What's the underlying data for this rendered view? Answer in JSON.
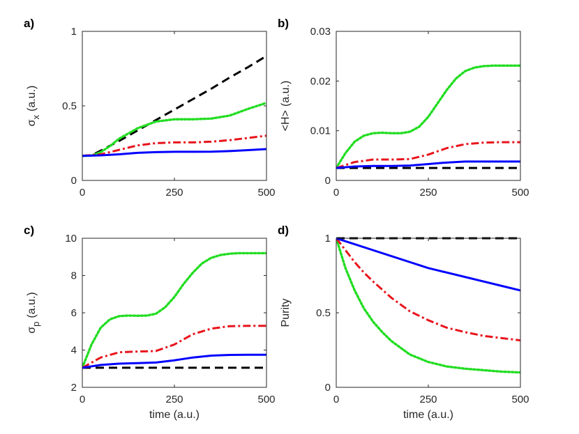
{
  "chart_data": [
    {
      "type": "line",
      "panel_label": "a)",
      "xlabel": "",
      "ylabel": "σ",
      "ylabel_sub": "x",
      "ylabel_unit": "(a.u.)",
      "xlim": [
        0,
        500
      ],
      "ylim": [
        0,
        1
      ],
      "xticks": [
        0,
        250,
        500
      ],
      "yticks": [
        0,
        0.5,
        1
      ],
      "series": [
        {
          "name": "dashed",
          "color": "#000000",
          "style": "dashed",
          "x": [
            0,
            25,
            50,
            100,
            150,
            200,
            250,
            300,
            350,
            400,
            450,
            500
          ],
          "y": [
            0.165,
            0.168,
            0.2,
            0.265,
            0.335,
            0.405,
            0.475,
            0.545,
            0.615,
            0.69,
            0.76,
            0.835
          ]
        },
        {
          "name": "dotted",
          "color": "#22dd22",
          "style": "dotted",
          "x": [
            0,
            25,
            50,
            75,
            100,
            150,
            200,
            250,
            300,
            350,
            400,
            450,
            500
          ],
          "y": [
            0.165,
            0.167,
            0.19,
            0.23,
            0.28,
            0.35,
            0.395,
            0.41,
            0.41,
            0.415,
            0.435,
            0.48,
            0.52
          ]
        },
        {
          "name": "dash-dot",
          "color": "#e8141c",
          "style": "dashdot",
          "x": [
            0,
            50,
            100,
            150,
            200,
            250,
            300,
            350,
            400,
            450,
            500
          ],
          "y": [
            0.165,
            0.175,
            0.205,
            0.235,
            0.25,
            0.255,
            0.255,
            0.26,
            0.27,
            0.285,
            0.3
          ]
        },
        {
          "name": "solid",
          "color": "#0000ff",
          "style": "solid",
          "x": [
            0,
            50,
            100,
            150,
            200,
            250,
            300,
            350,
            400,
            450,
            500
          ],
          "y": [
            0.165,
            0.168,
            0.175,
            0.185,
            0.19,
            0.192,
            0.192,
            0.193,
            0.197,
            0.203,
            0.21
          ]
        }
      ]
    },
    {
      "type": "line",
      "panel_label": "b)",
      "xlabel": "",
      "ylabel": "<H>",
      "ylabel_sub": "",
      "ylabel_unit": "(a.u.)",
      "xlim": [
        0,
        500
      ],
      "ylim": [
        0,
        0.03
      ],
      "xticks": [
        0,
        250,
        500
      ],
      "yticks": [
        0,
        0.01,
        0.02,
        0.03
      ],
      "series": [
        {
          "name": "dashed",
          "color": "#000000",
          "style": "dashed",
          "x": [
            0,
            500
          ],
          "y": [
            0.0025,
            0.0025
          ]
        },
        {
          "name": "dotted",
          "color": "#22dd22",
          "style": "dotted",
          "x": [
            0,
            25,
            50,
            75,
            100,
            125,
            150,
            175,
            200,
            225,
            250,
            275,
            300,
            325,
            350,
            375,
            400,
            425,
            450,
            475,
            500
          ],
          "y": [
            0.0025,
            0.0055,
            0.0078,
            0.009,
            0.0095,
            0.0096,
            0.0095,
            0.0095,
            0.0098,
            0.0108,
            0.0128,
            0.0155,
            0.0182,
            0.0205,
            0.022,
            0.0227,
            0.023,
            0.0231,
            0.0231,
            0.0231,
            0.0231
          ]
        },
        {
          "name": "dash-dot",
          "color": "#e8141c",
          "style": "dashdot",
          "x": [
            0,
            50,
            100,
            150,
            200,
            250,
            300,
            350,
            400,
            450,
            500
          ],
          "y": [
            0.0025,
            0.0037,
            0.0042,
            0.0042,
            0.0043,
            0.0052,
            0.0065,
            0.0073,
            0.0076,
            0.0077,
            0.0077
          ]
        },
        {
          "name": "solid",
          "color": "#0000ff",
          "style": "solid",
          "x": [
            0,
            50,
            100,
            150,
            200,
            250,
            300,
            350,
            400,
            450,
            500
          ],
          "y": [
            0.0025,
            0.0028,
            0.0029,
            0.0029,
            0.003,
            0.0033,
            0.0036,
            0.0038,
            0.0038,
            0.0038,
            0.0038
          ]
        }
      ]
    },
    {
      "type": "line",
      "panel_label": "c)",
      "xlabel": "time (a.u.)",
      "ylabel": "σ",
      "ylabel_sub": "p",
      "ylabel_unit": "(a.u.)",
      "xlim": [
        0,
        500
      ],
      "ylim": [
        2,
        10
      ],
      "xticks": [
        0,
        250,
        500
      ],
      "yticks": [
        2,
        4,
        6,
        8,
        10
      ],
      "series": [
        {
          "name": "dashed",
          "color": "#000000",
          "style": "dashed",
          "x": [
            0,
            500
          ],
          "y": [
            3.05,
            3.05
          ]
        },
        {
          "name": "dotted",
          "color": "#22dd22",
          "style": "dotted",
          "x": [
            0,
            25,
            50,
            75,
            100,
            125,
            150,
            175,
            200,
            225,
            250,
            275,
            300,
            325,
            350,
            375,
            400,
            425,
            450,
            475,
            500
          ],
          "y": [
            3.05,
            4.3,
            5.2,
            5.65,
            5.82,
            5.85,
            5.84,
            5.85,
            5.95,
            6.3,
            6.85,
            7.55,
            8.15,
            8.65,
            8.95,
            9.1,
            9.17,
            9.2,
            9.2,
            9.2,
            9.2
          ]
        },
        {
          "name": "dash-dot",
          "color": "#e8141c",
          "style": "dashdot",
          "x": [
            0,
            50,
            100,
            150,
            200,
            250,
            300,
            350,
            400,
            450,
            500
          ],
          "y": [
            3.05,
            3.6,
            3.88,
            3.92,
            3.95,
            4.3,
            4.85,
            5.15,
            5.28,
            5.3,
            5.3
          ]
        },
        {
          "name": "solid",
          "color": "#0000ff",
          "style": "solid",
          "x": [
            0,
            50,
            100,
            150,
            200,
            250,
            300,
            350,
            400,
            450,
            500
          ],
          "y": [
            3.05,
            3.2,
            3.27,
            3.3,
            3.33,
            3.45,
            3.6,
            3.7,
            3.74,
            3.75,
            3.75
          ]
        }
      ]
    },
    {
      "type": "line",
      "panel_label": "d)",
      "xlabel": "time (a.u.)",
      "ylabel": "Purity",
      "ylabel_sub": "",
      "ylabel_unit": "",
      "xlim": [
        0,
        500
      ],
      "ylim": [
        0,
        1
      ],
      "xticks": [
        0,
        250,
        500
      ],
      "yticks": [
        0,
        0.5,
        1
      ],
      "series": [
        {
          "name": "dashed",
          "color": "#000000",
          "style": "dashed",
          "x": [
            0,
            500
          ],
          "y": [
            1.0,
            1.0
          ]
        },
        {
          "name": "dotted",
          "color": "#22dd22",
          "style": "dotted",
          "x": [
            0,
            25,
            50,
            75,
            100,
            125,
            150,
            200,
            250,
            300,
            350,
            400,
            450,
            500
          ],
          "y": [
            1.0,
            0.8,
            0.65,
            0.53,
            0.44,
            0.37,
            0.31,
            0.22,
            0.17,
            0.14,
            0.125,
            0.115,
            0.105,
            0.1
          ]
        },
        {
          "name": "dash-dot",
          "color": "#e8141c",
          "style": "dashdot",
          "x": [
            0,
            25,
            50,
            75,
            100,
            150,
            200,
            250,
            300,
            350,
            400,
            450,
            500
          ],
          "y": [
            1.0,
            0.92,
            0.84,
            0.77,
            0.71,
            0.6,
            0.51,
            0.45,
            0.4,
            0.37,
            0.345,
            0.33,
            0.315
          ]
        },
        {
          "name": "solid",
          "color": "#0000ff",
          "style": "solid",
          "x": [
            0,
            50,
            100,
            150,
            200,
            250,
            300,
            350,
            400,
            450,
            500
          ],
          "y": [
            1.0,
            0.96,
            0.92,
            0.88,
            0.84,
            0.8,
            0.77,
            0.74,
            0.71,
            0.68,
            0.65
          ]
        }
      ]
    }
  ]
}
